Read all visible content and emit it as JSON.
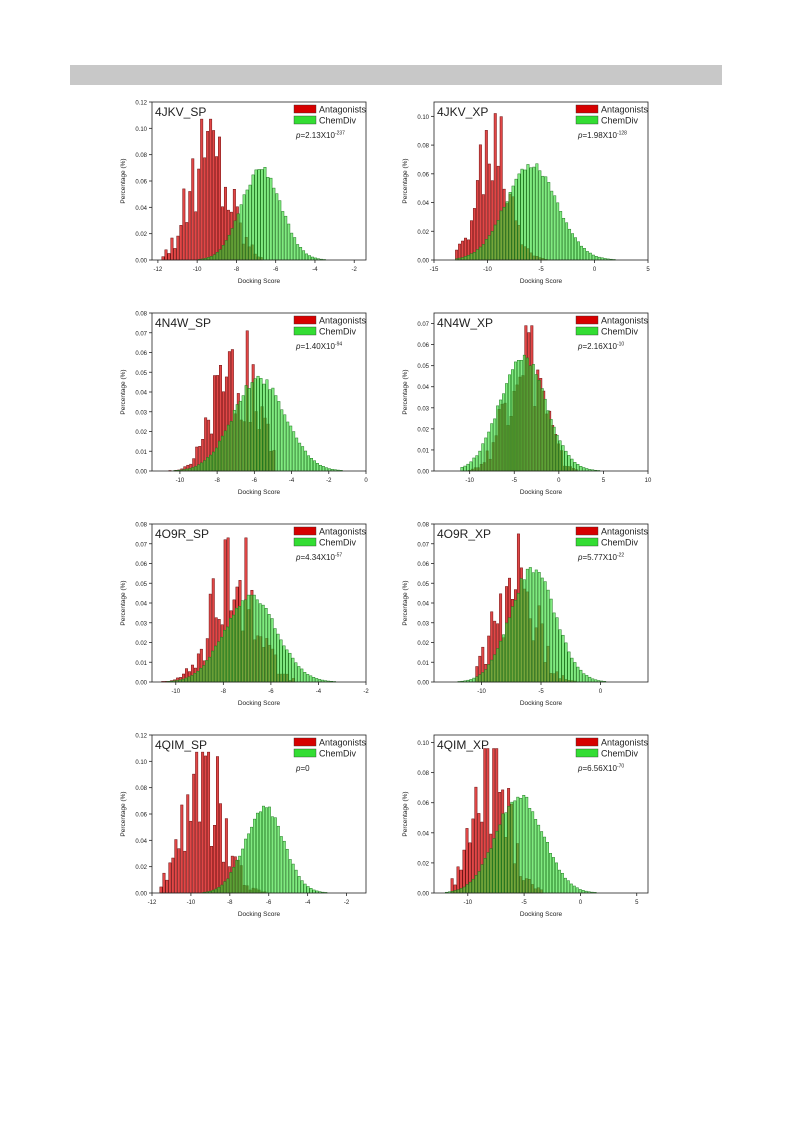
{
  "page": {
    "header_bar_color": "#c8c8c8"
  },
  "colors": {
    "antagonists_fill": "#d60000",
    "antagonists_stroke": "#6e1010",
    "chemdiv_fill": "#33dd33",
    "chemdiv_stroke": "#1f7a1f"
  },
  "chart_data": [
    {
      "type": "bar",
      "title": "4JKV_SP",
      "xlabel": "Docking Score",
      "ylabel": "Percentage (%)",
      "xlim": [
        -12.3,
        -1.4
      ],
      "ylim": [
        0,
        0.12
      ],
      "xticks": [
        -12,
        -10,
        -8,
        -6,
        -4,
        -2
      ],
      "yticks": [
        0.0,
        0.02,
        0.04,
        0.06,
        0.08,
        0.1,
        0.12
      ],
      "legend": [
        "Antagonists",
        "ChemDiv"
      ],
      "legend_position": "top-right",
      "pvalue": {
        "prefix": "p",
        "text": "=2.13X10",
        "exp": "-237"
      },
      "series": [
        {
          "name": "Antagonists",
          "mu": -9.4,
          "sigma": 1.0,
          "peak": 0.107,
          "xmin": -11.8,
          "xmax": -6.8,
          "spiky": true
        },
        {
          "name": "ChemDiv",
          "mu": -6.8,
          "sigma": 1.0,
          "peak": 0.071,
          "xmin": -11.0,
          "xmax": -2.0,
          "spiky": false
        }
      ]
    },
    {
      "type": "bar",
      "title": "4JKV_XP",
      "xlabel": "Docking Score",
      "ylabel": "Percentage (%)",
      "xlim": [
        -15,
        5
      ],
      "ylim": [
        0,
        0.11
      ],
      "xticks": [
        -15,
        -10,
        -5,
        0,
        5
      ],
      "yticks": [
        0.0,
        0.02,
        0.04,
        0.06,
        0.08,
        0.1
      ],
      "legend": [
        "Antagonists",
        "ChemDiv"
      ],
      "legend_position": "top-right",
      "pvalue": {
        "prefix": "p",
        "text": "=1.98X10",
        "exp": "-128"
      },
      "series": [
        {
          "name": "Antagonists",
          "mu": -9.5,
          "sigma": 1.5,
          "peak": 0.102,
          "xmin": -13.0,
          "xmax": -4.5,
          "spiky": true
        },
        {
          "name": "ChemDiv",
          "mu": -6.0,
          "sigma": 2.4,
          "peak": 0.067,
          "xmin": -13.0,
          "xmax": 4.5,
          "spiky": false
        }
      ]
    },
    {
      "type": "bar",
      "title": "4N4W_SP",
      "xlabel": "Docking Score",
      "ylabel": "Percentage (%)",
      "xlim": [
        -11.5,
        0
      ],
      "ylim": [
        0,
        0.08
      ],
      "xticks": [
        -10,
        -8,
        -6,
        -4,
        -2,
        0
      ],
      "yticks": [
        0.0,
        0.01,
        0.02,
        0.03,
        0.04,
        0.05,
        0.06,
        0.07,
        0.08
      ],
      "legend": [
        "Antagonists",
        "ChemDiv"
      ],
      "legend_position": "top-right",
      "pvalue": {
        "prefix": "p",
        "text": "=1.40X10",
        "exp": "-94"
      },
      "series": [
        {
          "name": "Antagonists",
          "mu": -7.0,
          "sigma": 1.1,
          "peak": 0.071,
          "xmin": -10.6,
          "xmax": -5.0,
          "spiky": true
        },
        {
          "name": "ChemDiv",
          "mu": -5.8,
          "sigma": 1.4,
          "peak": 0.048,
          "xmin": -10.5,
          "xmax": -1.2,
          "spiky": false
        }
      ]
    },
    {
      "type": "bar",
      "title": "4N4W_XP",
      "xlabel": "Docking Score",
      "ylabel": "Percentage (%)",
      "xlim": [
        -14,
        10
      ],
      "ylim": [
        0,
        0.075
      ],
      "xticks": [
        -10,
        -5,
        0,
        5,
        10
      ],
      "yticks": [
        0.0,
        0.01,
        0.02,
        0.03,
        0.04,
        0.05,
        0.06,
        0.07
      ],
      "legend": [
        "Antagonists",
        "ChemDiv"
      ],
      "legend_position": "top-right",
      "pvalue": {
        "prefix": "p",
        "text": "=2.16X10",
        "exp": "-10"
      },
      "series": [
        {
          "name": "Antagonists",
          "mu": -4.0,
          "sigma": 2.0,
          "peak": 0.069,
          "xmin": -10.5,
          "xmax": 2.0,
          "spiky": true
        },
        {
          "name": "ChemDiv",
          "mu": -4.2,
          "sigma": 2.6,
          "peak": 0.055,
          "xmin": -11.0,
          "xmax": 9.5,
          "spiky": false
        }
      ]
    },
    {
      "type": "bar",
      "title": "4O9R_SP",
      "xlabel": "Docking Score",
      "ylabel": "Percentage (%)",
      "xlim": [
        -11,
        -2
      ],
      "ylim": [
        0,
        0.08
      ],
      "xticks": [
        -10,
        -8,
        -6,
        -4,
        -2
      ],
      "yticks": [
        0.0,
        0.01,
        0.02,
        0.03,
        0.04,
        0.05,
        0.06,
        0.07,
        0.08
      ],
      "legend": [
        "Antagonists",
        "ChemDiv"
      ],
      "legend_position": "top-right",
      "pvalue": {
        "prefix": "p",
        "text": "=4.34X10",
        "exp": "-57"
      },
      "series": [
        {
          "name": "Antagonists",
          "mu": -7.6,
          "sigma": 0.9,
          "peak": 0.073,
          "xmin": -10.6,
          "xmax": -5.0,
          "spiky": true
        },
        {
          "name": "ChemDiv",
          "mu": -6.9,
          "sigma": 1.1,
          "peak": 0.044,
          "xmin": -10.5,
          "xmax": -2.2,
          "spiky": false
        }
      ]
    },
    {
      "type": "bar",
      "title": "4O9R_XP",
      "xlabel": "Docking Score",
      "ylabel": "Percentage (%)",
      "xlim": [
        -14,
        4
      ],
      "ylim": [
        0,
        0.08
      ],
      "xticks": [
        -10,
        -5,
        0
      ],
      "yticks": [
        0.0,
        0.01,
        0.02,
        0.03,
        0.04,
        0.05,
        0.06,
        0.07,
        0.08
      ],
      "legend": [
        "Antagonists",
        "ChemDiv"
      ],
      "legend_position": "top-right",
      "pvalue": {
        "prefix": "p",
        "text": "=5.77X10",
        "exp": "-22"
      },
      "series": [
        {
          "name": "Antagonists",
          "mu": -7.3,
          "sigma": 1.6,
          "peak": 0.075,
          "xmin": -10.5,
          "xmax": -1.5,
          "spiky": true
        },
        {
          "name": "ChemDiv",
          "mu": -5.8,
          "sigma": 1.9,
          "peak": 0.058,
          "xmin": -13.0,
          "xmax": 3.0,
          "spiky": false
        }
      ]
    },
    {
      "type": "bar",
      "title": "4QIM_SP",
      "xlabel": "Docking Score",
      "ylabel": "Percentage (%)",
      "xlim": [
        -12,
        -1
      ],
      "ylim": [
        0,
        0.12
      ],
      "xticks": [
        -12,
        -10,
        -8,
        -6,
        -4,
        -2
      ],
      "yticks": [
        0.0,
        0.02,
        0.04,
        0.06,
        0.08,
        0.1,
        0.12
      ],
      "legend": [
        "Antagonists",
        "ChemDiv"
      ],
      "legend_position": "top-right",
      "pvalue": {
        "prefix": "p",
        "text": "=0",
        "exp": ""
      },
      "series": [
        {
          "name": "Antagonists",
          "mu": -9.4,
          "sigma": 1.0,
          "peak": 0.107,
          "xmin": -11.6,
          "xmax": -5.8,
          "spiky": true
        },
        {
          "name": "ChemDiv",
          "mu": -6.3,
          "sigma": 1.0,
          "peak": 0.066,
          "xmin": -10.0,
          "xmax": -2.0,
          "spiky": false
        }
      ]
    },
    {
      "type": "bar",
      "title": "4QIM_XP",
      "xlabel": "Docking Score",
      "ylabel": "Percentage (%)",
      "xlim": [
        -13,
        6
      ],
      "ylim": [
        0,
        0.105
      ],
      "xticks": [
        -10,
        -5,
        0,
        5
      ],
      "yticks": [
        0.0,
        0.02,
        0.04,
        0.06,
        0.08,
        0.1
      ],
      "legend": [
        "Antagonists",
        "ChemDiv"
      ],
      "legend_position": "top-right",
      "pvalue": {
        "prefix": "p",
        "text": "=6.56X10",
        "exp": "-70"
      },
      "series": [
        {
          "name": "Antagonists",
          "mu": -8.0,
          "sigma": 1.6,
          "peak": 0.096,
          "xmin": -11.5,
          "xmax": -3.5,
          "spiky": true
        },
        {
          "name": "ChemDiv",
          "mu": -5.5,
          "sigma": 2.1,
          "peak": 0.066,
          "xmin": -12.0,
          "xmax": 5.0,
          "spiky": false
        }
      ]
    }
  ]
}
